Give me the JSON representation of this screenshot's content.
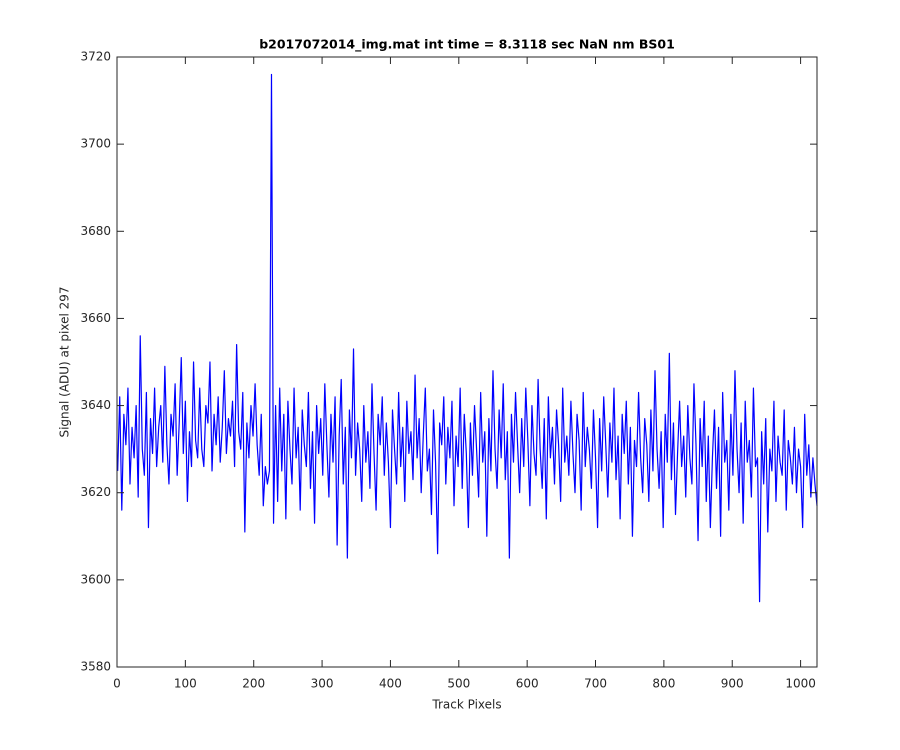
{
  "chart_data": {
    "type": "line",
    "title": "b2017072014_img.mat int time = 8.3118 sec  NaN nm BS01",
    "x_label": "Track Pixels",
    "y_label": "Signal (ADU) at pixel 297",
    "xlim": [
      0,
      1024
    ],
    "ylim": [
      3580,
      3720
    ],
    "xticks": [
      0,
      100,
      200,
      300,
      400,
      500,
      600,
      700,
      800,
      900,
      1000
    ],
    "yticks": [
      3580,
      3600,
      3620,
      3640,
      3660,
      3680,
      3700,
      3720
    ],
    "grid": false,
    "x": [
      1,
      4,
      7,
      10,
      13,
      16,
      19,
      22,
      25,
      28,
      31,
      34,
      37,
      40,
      43,
      46,
      49,
      52,
      55,
      58,
      61,
      64,
      67,
      70,
      73,
      76,
      79,
      82,
      85,
      88,
      91,
      94,
      97,
      100,
      103,
      106,
      109,
      112,
      115,
      118,
      121,
      124,
      127,
      130,
      133,
      136,
      139,
      142,
      145,
      148,
      151,
      154,
      157,
      160,
      163,
      166,
      169,
      172,
      175,
      178,
      181,
      184,
      187,
      190,
      193,
      196,
      199,
      202,
      205,
      208,
      211,
      214,
      217,
      220,
      223,
      226,
      229,
      232,
      235,
      238,
      241,
      244,
      247,
      250,
      253,
      256,
      259,
      262,
      265,
      268,
      271,
      274,
      277,
      280,
      283,
      286,
      289,
      292,
      295,
      298,
      301,
      304,
      307,
      310,
      313,
      316,
      319,
      322,
      325,
      328,
      331,
      334,
      337,
      340,
      343,
      346,
      349,
      352,
      355,
      358,
      361,
      364,
      367,
      370,
      373,
      376,
      379,
      382,
      385,
      388,
      391,
      394,
      397,
      400,
      403,
      406,
      409,
      412,
      415,
      418,
      421,
      424,
      427,
      430,
      433,
      436,
      439,
      442,
      445,
      448,
      451,
      454,
      457,
      460,
      463,
      466,
      469,
      472,
      475,
      478,
      481,
      484,
      487,
      490,
      493,
      496,
      499,
      502,
      505,
      508,
      511,
      514,
      517,
      520,
      523,
      526,
      529,
      532,
      535,
      538,
      541,
      544,
      547,
      550,
      553,
      556,
      559,
      562,
      565,
      568,
      571,
      574,
      577,
      580,
      583,
      586,
      589,
      592,
      595,
      598,
      601,
      604,
      607,
      610,
      613,
      616,
      619,
      622,
      625,
      628,
      631,
      634,
      637,
      640,
      643,
      646,
      649,
      652,
      655,
      658,
      661,
      664,
      667,
      670,
      673,
      676,
      679,
      682,
      685,
      688,
      691,
      694,
      697,
      700,
      703,
      706,
      709,
      712,
      715,
      718,
      721,
      724,
      727,
      730,
      733,
      736,
      739,
      742,
      745,
      748,
      751,
      754,
      757,
      760,
      763,
      766,
      769,
      772,
      775,
      778,
      781,
      784,
      787,
      790,
      793,
      796,
      799,
      802,
      805,
      808,
      811,
      814,
      817,
      820,
      823,
      826,
      829,
      832,
      835,
      838,
      841,
      844,
      847,
      850,
      853,
      856,
      859,
      862,
      865,
      868,
      871,
      874,
      877,
      880,
      883,
      886,
      889,
      892,
      895,
      898,
      901,
      904,
      907,
      910,
      913,
      916,
      919,
      922,
      925,
      928,
      931,
      934,
      937,
      940,
      943,
      946,
      949,
      952,
      955,
      958,
      961,
      964,
      967,
      970,
      973,
      976,
      979,
      982,
      985,
      988,
      991,
      994,
      997,
      1000,
      1003,
      1006,
      1009,
      1012,
      1015,
      1018,
      1021,
      1024
    ],
    "series": [
      {
        "color": "#0000ff",
        "values": [
          3625,
          3642,
          3616,
          3638,
          3631,
          3644,
          3622,
          3635,
          3628,
          3640,
          3619,
          3656,
          3630,
          3624,
          3643,
          3612,
          3637,
          3629,
          3644,
          3626,
          3635,
          3640,
          3627,
          3649,
          3631,
          3622,
          3638,
          3633,
          3645,
          3624,
          3636,
          3651,
          3629,
          3641,
          3618,
          3634,
          3626,
          3650,
          3632,
          3628,
          3644,
          3630,
          3626,
          3640,
          3636,
          3650,
          3625,
          3638,
          3631,
          3642,
          3627,
          3635,
          3648,
          3629,
          3637,
          3633,
          3641,
          3626,
          3654,
          3634,
          3630,
          3643,
          3611,
          3636,
          3628,
          3640,
          3633,
          3645,
          3631,
          3624,
          3638,
          3617,
          3626,
          3622,
          3625,
          3716,
          3613,
          3640,
          3618,
          3644,
          3625,
          3638,
          3614,
          3641,
          3630,
          3622,
          3644,
          3628,
          3635,
          3616,
          3639,
          3631,
          3626,
          3643,
          3621,
          3634,
          3613,
          3640,
          3629,
          3637,
          3624,
          3645,
          3631,
          3619,
          3638,
          3627,
          3642,
          3608,
          3633,
          3646,
          3622,
          3635,
          3605,
          3639,
          3628,
          3653,
          3624,
          3636,
          3630,
          3618,
          3640,
          3627,
          3634,
          3621,
          3645,
          3629,
          3616,
          3638,
          3631,
          3642,
          3624,
          3636,
          3627,
          3612,
          3639,
          3630,
          3622,
          3643,
          3626,
          3635,
          3618,
          3641,
          3629,
          3634,
          3623,
          3647,
          3628,
          3637,
          3620,
          3633,
          3644,
          3625,
          3630,
          3615,
          3639,
          3627,
          3606,
          3636,
          3631,
          3642,
          3622,
          3635,
          3628,
          3641,
          3617,
          3633,
          3626,
          3644,
          3621,
          3638,
          3629,
          3612,
          3636,
          3624,
          3640,
          3630,
          3619,
          3643,
          3627,
          3634,
          3610,
          3637,
          3625,
          3648,
          3630,
          3621,
          3639,
          3628,
          3645,
          3623,
          3634,
          3605,
          3638,
          3627,
          3643,
          3631,
          3620,
          3637,
          3626,
          3644,
          3632,
          3617,
          3640,
          3629,
          3624,
          3646,
          3630,
          3621,
          3637,
          3614,
          3642,
          3628,
          3635,
          3622,
          3639,
          3631,
          3618,
          3644,
          3627,
          3633,
          3624,
          3641,
          3629,
          3620,
          3638,
          3632,
          3616,
          3643,
          3626,
          3635,
          3630,
          3621,
          3639,
          3628,
          3612,
          3637,
          3625,
          3642,
          3631,
          3619,
          3636,
          3627,
          3644,
          3623,
          3633,
          3614,
          3638,
          3629,
          3641,
          3622,
          3635,
          3610,
          3632,
          3626,
          3643,
          3628,
          3620,
          3637,
          3631,
          3618,
          3639,
          3625,
          3648,
          3630,
          3621,
          3634,
          3612,
          3638,
          3627,
          3652,
          3623,
          3636,
          3615,
          3629,
          3641,
          3626,
          3633,
          3619,
          3640,
          3628,
          3622,
          3645,
          3631,
          3609,
          3637,
          3626,
          3641,
          3618,
          3633,
          3612,
          3628,
          3639,
          3621,
          3635,
          3610,
          3643,
          3627,
          3632,
          3616,
          3638,
          3624,
          3648,
          3630,
          3620,
          3636,
          3613,
          3641,
          3627,
          3632,
          3619,
          3644,
          3626,
          3628,
          3595,
          3634,
          3622,
          3637,
          3611,
          3630,
          3625,
          3641,
          3618,
          3633,
          3627,
          3624,
          3639,
          3616,
          3632,
          3628,
          3622,
          3635,
          3620,
          3630,
          3626,
          3612,
          3638,
          3624,
          3631,
          3619,
          3628,
          3622,
          3617
        ]
      }
    ]
  }
}
